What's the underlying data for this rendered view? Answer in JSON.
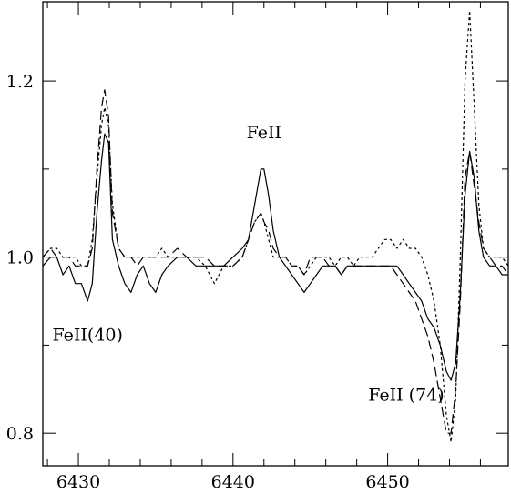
{
  "chart_data": {
    "type": "line",
    "title": "",
    "xlabel": "",
    "ylabel": "",
    "xlim": [
      6427.7,
      6457.8
    ],
    "ylim": [
      0.763,
      1.29
    ],
    "x_ticks": [
      6430,
      6440,
      6450
    ],
    "y_ticks": [
      0.8,
      1.0,
      1.2
    ],
    "grid": false,
    "series": [
      {
        "style": "solid",
        "points": [
          [
            6427.7,
            0.99
          ],
          [
            6428.2,
            1.0
          ],
          [
            6428.6,
            1.0
          ],
          [
            6429.0,
            0.98
          ],
          [
            6429.4,
            0.99
          ],
          [
            6429.8,
            0.97
          ],
          [
            6430.2,
            0.97
          ],
          [
            6430.6,
            0.95
          ],
          [
            6430.9,
            0.97
          ],
          [
            6431.2,
            1.05
          ],
          [
            6431.5,
            1.11
          ],
          [
            6431.7,
            1.14
          ],
          [
            6431.95,
            1.13
          ],
          [
            6432.2,
            1.02
          ],
          [
            6432.6,
            0.99
          ],
          [
            6433.0,
            0.97
          ],
          [
            6433.4,
            0.96
          ],
          [
            6433.8,
            0.98
          ],
          [
            6434.2,
            0.99
          ],
          [
            6434.6,
            0.97
          ],
          [
            6435.0,
            0.96
          ],
          [
            6435.4,
            0.98
          ],
          [
            6435.8,
            0.99
          ],
          [
            6436.4,
            1.0
          ],
          [
            6437.0,
            1.0
          ],
          [
            6437.6,
            0.99
          ],
          [
            6438.2,
            0.99
          ],
          [
            6438.8,
            0.99
          ],
          [
            6439.4,
            0.99
          ],
          [
            6440.0,
            1.0
          ],
          [
            6440.6,
            1.01
          ],
          [
            6441.0,
            1.02
          ],
          [
            6441.4,
            1.06
          ],
          [
            6441.8,
            1.1
          ],
          [
            6442.0,
            1.1
          ],
          [
            6442.3,
            1.07
          ],
          [
            6442.6,
            1.03
          ],
          [
            6443.0,
            1.0
          ],
          [
            6443.4,
            0.99
          ],
          [
            6443.8,
            0.98
          ],
          [
            6444.2,
            0.97
          ],
          [
            6444.6,
            0.96
          ],
          [
            6445.0,
            0.97
          ],
          [
            6445.4,
            0.98
          ],
          [
            6445.8,
            0.99
          ],
          [
            6446.2,
            0.99
          ],
          [
            6446.6,
            0.99
          ],
          [
            6447.0,
            0.98
          ],
          [
            6447.4,
            0.99
          ],
          [
            6447.8,
            0.99
          ],
          [
            6448.2,
            0.99
          ],
          [
            6448.6,
            0.99
          ],
          [
            6449.0,
            0.99
          ],
          [
            6449.4,
            0.99
          ],
          [
            6449.8,
            0.99
          ],
          [
            6450.2,
            0.99
          ],
          [
            6450.6,
            0.99
          ],
          [
            6451.0,
            0.98
          ],
          [
            6451.4,
            0.97
          ],
          [
            6451.8,
            0.96
          ],
          [
            6452.2,
            0.95
          ],
          [
            6452.6,
            0.93
          ],
          [
            6453.0,
            0.92
          ],
          [
            6453.4,
            0.9
          ],
          [
            6453.8,
            0.87
          ],
          [
            6454.1,
            0.86
          ],
          [
            6454.4,
            0.88
          ],
          [
            6454.7,
            0.96
          ],
          [
            6455.0,
            1.07
          ],
          [
            6455.3,
            1.12
          ],
          [
            6455.6,
            1.09
          ],
          [
            6455.9,
            1.03
          ],
          [
            6456.2,
            1.0
          ],
          [
            6456.6,
            0.99
          ],
          [
            6457.0,
            0.99
          ],
          [
            6457.4,
            0.98
          ],
          [
            6457.8,
            0.98
          ]
        ]
      },
      {
        "style": "dashed",
        "points": [
          [
            6427.7,
            1.0
          ],
          [
            6428.2,
            1.01
          ],
          [
            6428.6,
            1.0
          ],
          [
            6429.0,
            1.0
          ],
          [
            6429.4,
            1.0
          ],
          [
            6429.8,
            0.99
          ],
          [
            6430.2,
            0.99
          ],
          [
            6430.6,
            0.99
          ],
          [
            6430.9,
            1.01
          ],
          [
            6431.2,
            1.1
          ],
          [
            6431.5,
            1.17
          ],
          [
            6431.7,
            1.19
          ],
          [
            6431.95,
            1.16
          ],
          [
            6432.2,
            1.05
          ],
          [
            6432.6,
            1.01
          ],
          [
            6433.0,
            1.0
          ],
          [
            6433.4,
            1.0
          ],
          [
            6433.8,
            0.99
          ],
          [
            6434.2,
            1.0
          ],
          [
            6434.6,
            1.0
          ],
          [
            6435.0,
            1.0
          ],
          [
            6435.4,
            1.0
          ],
          [
            6435.8,
            1.0
          ],
          [
            6436.4,
            1.01
          ],
          [
            6437.0,
            1.0
          ],
          [
            6437.6,
            1.0
          ],
          [
            6438.2,
            1.0
          ],
          [
            6438.8,
            0.99
          ],
          [
            6439.4,
            0.99
          ],
          [
            6440.0,
            0.99
          ],
          [
            6440.6,
            1.0
          ],
          [
            6441.0,
            1.02
          ],
          [
            6441.4,
            1.04
          ],
          [
            6441.8,
            1.05
          ],
          [
            6442.0,
            1.04
          ],
          [
            6442.3,
            1.03
          ],
          [
            6442.6,
            1.01
          ],
          [
            6443.0,
            1.0
          ],
          [
            6443.4,
            1.0
          ],
          [
            6443.8,
            0.99
          ],
          [
            6444.2,
            0.99
          ],
          [
            6444.6,
            0.98
          ],
          [
            6445.0,
            1.0
          ],
          [
            6445.4,
            1.0
          ],
          [
            6445.8,
            1.0
          ],
          [
            6446.2,
            0.99
          ],
          [
            6446.6,
            0.99
          ],
          [
            6447.0,
            0.98
          ],
          [
            6447.4,
            0.99
          ],
          [
            6447.8,
            0.99
          ],
          [
            6448.2,
            0.99
          ],
          [
            6448.6,
            0.99
          ],
          [
            6449.0,
            0.99
          ],
          [
            6449.4,
            0.99
          ],
          [
            6449.8,
            0.99
          ],
          [
            6450.2,
            0.99
          ],
          [
            6450.6,
            0.98
          ],
          [
            6451.0,
            0.97
          ],
          [
            6451.4,
            0.96
          ],
          [
            6451.8,
            0.95
          ],
          [
            6452.2,
            0.93
          ],
          [
            6452.6,
            0.91
          ],
          [
            6453.0,
            0.88
          ],
          [
            6453.4,
            0.84
          ],
          [
            6453.8,
            0.8
          ],
          [
            6454.1,
            0.8
          ],
          [
            6454.4,
            0.85
          ],
          [
            6454.7,
            0.95
          ],
          [
            6455.0,
            1.09
          ],
          [
            6455.3,
            1.12
          ],
          [
            6455.6,
            1.08
          ],
          [
            6455.9,
            1.04
          ],
          [
            6456.2,
            1.01
          ],
          [
            6456.6,
            1.0
          ],
          [
            6457.0,
            0.99
          ],
          [
            6457.4,
            0.99
          ],
          [
            6457.8,
            0.98
          ]
        ]
      },
      {
        "style": "dotted",
        "points": [
          [
            6427.7,
            1.0
          ],
          [
            6428.2,
            1.01
          ],
          [
            6428.6,
            1.01
          ],
          [
            6429.0,
            1.0
          ],
          [
            6429.4,
            1.0
          ],
          [
            6429.8,
            1.0
          ],
          [
            6430.2,
            0.99
          ],
          [
            6430.6,
            0.99
          ],
          [
            6430.9,
            1.02
          ],
          [
            6431.2,
            1.09
          ],
          [
            6431.5,
            1.15
          ],
          [
            6431.7,
            1.17
          ],
          [
            6431.95,
            1.15
          ],
          [
            6432.2,
            1.06
          ],
          [
            6432.6,
            1.01
          ],
          [
            6433.0,
            1.0
          ],
          [
            6433.4,
            1.0
          ],
          [
            6433.8,
            1.0
          ],
          [
            6434.2,
            1.0
          ],
          [
            6434.6,
            1.0
          ],
          [
            6435.0,
            1.0
          ],
          [
            6435.4,
            1.01
          ],
          [
            6435.8,
            1.0
          ],
          [
            6436.4,
            1.0
          ],
          [
            6437.0,
            1.0
          ],
          [
            6437.6,
            1.0
          ],
          [
            6438.2,
            0.99
          ],
          [
            6438.8,
            0.97
          ],
          [
            6439.4,
            0.99
          ],
          [
            6440.0,
            0.99
          ],
          [
            6440.6,
            1.0
          ],
          [
            6441.0,
            1.02
          ],
          [
            6441.4,
            1.04
          ],
          [
            6441.8,
            1.05
          ],
          [
            6442.0,
            1.04
          ],
          [
            6442.3,
            1.02
          ],
          [
            6442.6,
            1.0
          ],
          [
            6443.0,
            1.0
          ],
          [
            6443.4,
            1.0
          ],
          [
            6443.8,
            0.99
          ],
          [
            6444.2,
            0.99
          ],
          [
            6444.6,
            0.98
          ],
          [
            6445.0,
            0.99
          ],
          [
            6445.4,
            1.0
          ],
          [
            6445.8,
            1.0
          ],
          [
            6446.2,
            1.0
          ],
          [
            6446.6,
            0.99
          ],
          [
            6447.0,
            1.0
          ],
          [
            6447.4,
            1.0
          ],
          [
            6447.8,
            0.99
          ],
          [
            6448.2,
            1.0
          ],
          [
            6448.6,
            1.0
          ],
          [
            6449.0,
            1.0
          ],
          [
            6449.4,
            1.01
          ],
          [
            6449.8,
            1.02
          ],
          [
            6450.2,
            1.02
          ],
          [
            6450.6,
            1.01
          ],
          [
            6451.0,
            1.02
          ],
          [
            6451.4,
            1.01
          ],
          [
            6451.8,
            1.01
          ],
          [
            6452.2,
            1.0
          ],
          [
            6452.6,
            0.98
          ],
          [
            6453.0,
            0.95
          ],
          [
            6453.4,
            0.9
          ],
          [
            6453.8,
            0.82
          ],
          [
            6454.1,
            0.79
          ],
          [
            6454.4,
            0.84
          ],
          [
            6454.7,
            1.0
          ],
          [
            6455.0,
            1.2
          ],
          [
            6455.3,
            1.28
          ],
          [
            6455.6,
            1.17
          ],
          [
            6455.9,
            1.06
          ],
          [
            6456.2,
            1.01
          ],
          [
            6456.6,
            1.0
          ],
          [
            6457.0,
            1.0
          ],
          [
            6457.4,
            1.0
          ],
          [
            6457.8,
            0.99
          ]
        ]
      }
    ],
    "annotations": [
      {
        "text": "FeII",
        "x": 6442.0,
        "y": 1.135
      },
      {
        "text": "FeII(40)",
        "x": 6430.6,
        "y": 0.905
      },
      {
        "text": "FeII  (74)",
        "x": 6451.2,
        "y": 0.837
      }
    ]
  }
}
